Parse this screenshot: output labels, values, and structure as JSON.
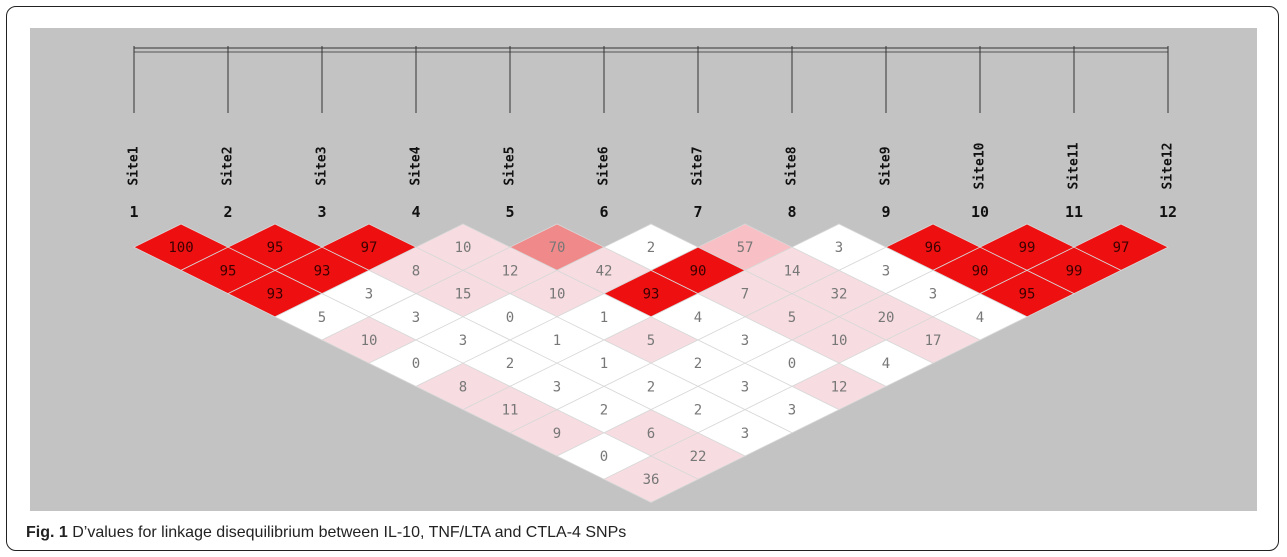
{
  "caption": {
    "label": "Fig. 1",
    "text": "D’values for linkage disequilibrium between IL-10, TNF/LTA and CTLA-4 SNPs"
  },
  "colors": {
    "panel_background": "#c4c3c4",
    "strong": "#ee1010",
    "medium": "#f08a8a",
    "light": "#f8bfc4",
    "faint": "#f7dde1",
    "none": "#ffffff"
  },
  "chart_data": {
    "type": "heatmap",
    "description_of_encoding": "pairwise D' values x100 between sites; row k lists pairs (i, i+k)",
    "sites": [
      "Site1",
      "Site2",
      "Site3",
      "Site4",
      "Site5",
      "Site6",
      "Site7",
      "Site8",
      "Site9",
      "Site10",
      "Site11",
      "Site12"
    ],
    "site_numbers": [
      "1",
      "2",
      "3",
      "4",
      "5",
      "6",
      "7",
      "8",
      "9",
      "10",
      "11",
      "12"
    ],
    "ld_rows": [
      [
        100,
        95,
        97,
        10,
        70,
        2,
        57,
        3,
        96,
        99,
        97
      ],
      [
        95,
        93,
        8,
        12,
        42,
        90,
        14,
        3,
        90,
        99
      ],
      [
        93,
        3,
        15,
        10,
        93,
        7,
        32,
        3,
        95
      ],
      [
        5,
        3,
        0,
        1,
        4,
        5,
        20,
        4
      ],
      [
        10,
        3,
        1,
        5,
        3,
        10,
        17
      ],
      [
        0,
        2,
        1,
        2,
        0,
        4
      ],
      [
        8,
        3,
        2,
        3,
        12
      ],
      [
        11,
        2,
        2,
        3
      ],
      [
        9,
        6,
        3
      ],
      [
        0,
        22
      ],
      [
        36
      ]
    ],
    "cell_colors": [
      [
        "strong",
        "strong",
        "strong",
        "faint",
        "medium",
        "none",
        "light",
        "none",
        "strong",
        "strong",
        "strong"
      ],
      [
        "strong",
        "strong",
        "faint",
        "faint",
        "faint",
        "strong",
        "faint",
        "none",
        "strong",
        "strong"
      ],
      [
        "strong",
        "none",
        "faint",
        "faint",
        "strong",
        "faint",
        "faint",
        "none",
        "strong"
      ],
      [
        "none",
        "none",
        "none",
        "none",
        "none",
        "faint",
        "faint",
        "none"
      ],
      [
        "faint",
        "none",
        "none",
        "faint",
        "none",
        "faint",
        "faint"
      ],
      [
        "none",
        "none",
        "none",
        "none",
        "none",
        "none"
      ],
      [
        "faint",
        "none",
        "none",
        "none",
        "faint"
      ],
      [
        "faint",
        "none",
        "none",
        "none"
      ],
      [
        "faint",
        "faint",
        "none"
      ],
      [
        "none",
        "faint"
      ],
      [
        "faint"
      ]
    ]
  }
}
